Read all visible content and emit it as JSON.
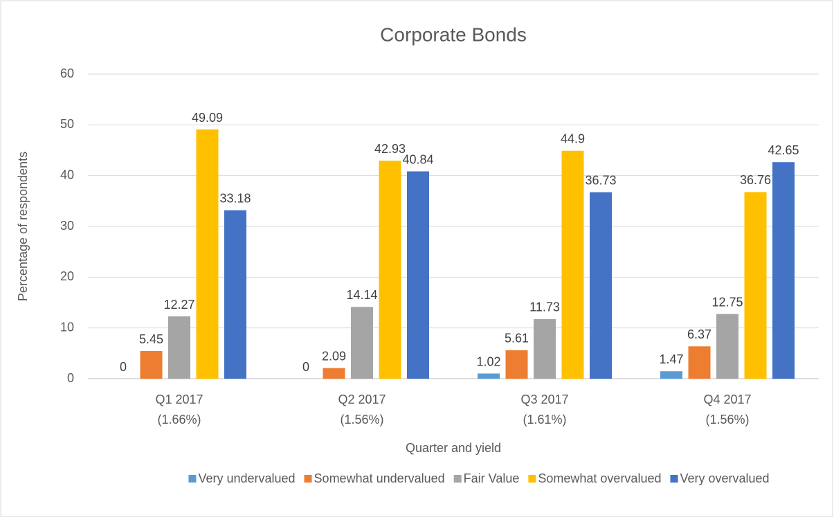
{
  "chart_data": {
    "type": "bar",
    "title": "Corporate Bonds",
    "x_label": "Quarter and yield",
    "y_label": "Percentage of respondents",
    "categories": [
      [
        "Q1 2017",
        "(1.66%)"
      ],
      [
        "Q2 2017",
        "(1.56%)"
      ],
      [
        "Q3 2017",
        "(1.61%)"
      ],
      [
        "Q4 2017",
        "(1.56%)"
      ]
    ],
    "series": [
      {
        "name": "Very undervalued",
        "color": "#5b9bd5",
        "values": [
          0,
          0,
          1.02,
          1.47
        ]
      },
      {
        "name": "Somewhat undervalued",
        "color": "#ed7d31",
        "values": [
          5.45,
          2.09,
          5.61,
          6.37
        ]
      },
      {
        "name": "Fair Value",
        "color": "#a5a5a5",
        "values": [
          12.27,
          14.14,
          11.73,
          12.75
        ]
      },
      {
        "name": "Somewhat overvalued",
        "color": "#ffc000",
        "values": [
          49.09,
          42.93,
          44.9,
          36.76
        ]
      },
      {
        "name": "Very overvalued",
        "color": "#4472c4",
        "values": [
          33.18,
          40.84,
          36.73,
          42.65
        ]
      }
    ],
    "ylim": [
      0,
      60
    ],
    "yticks": [
      0,
      10,
      20,
      30,
      40,
      50,
      60
    ],
    "grid": true,
    "legend": "bottom"
  }
}
